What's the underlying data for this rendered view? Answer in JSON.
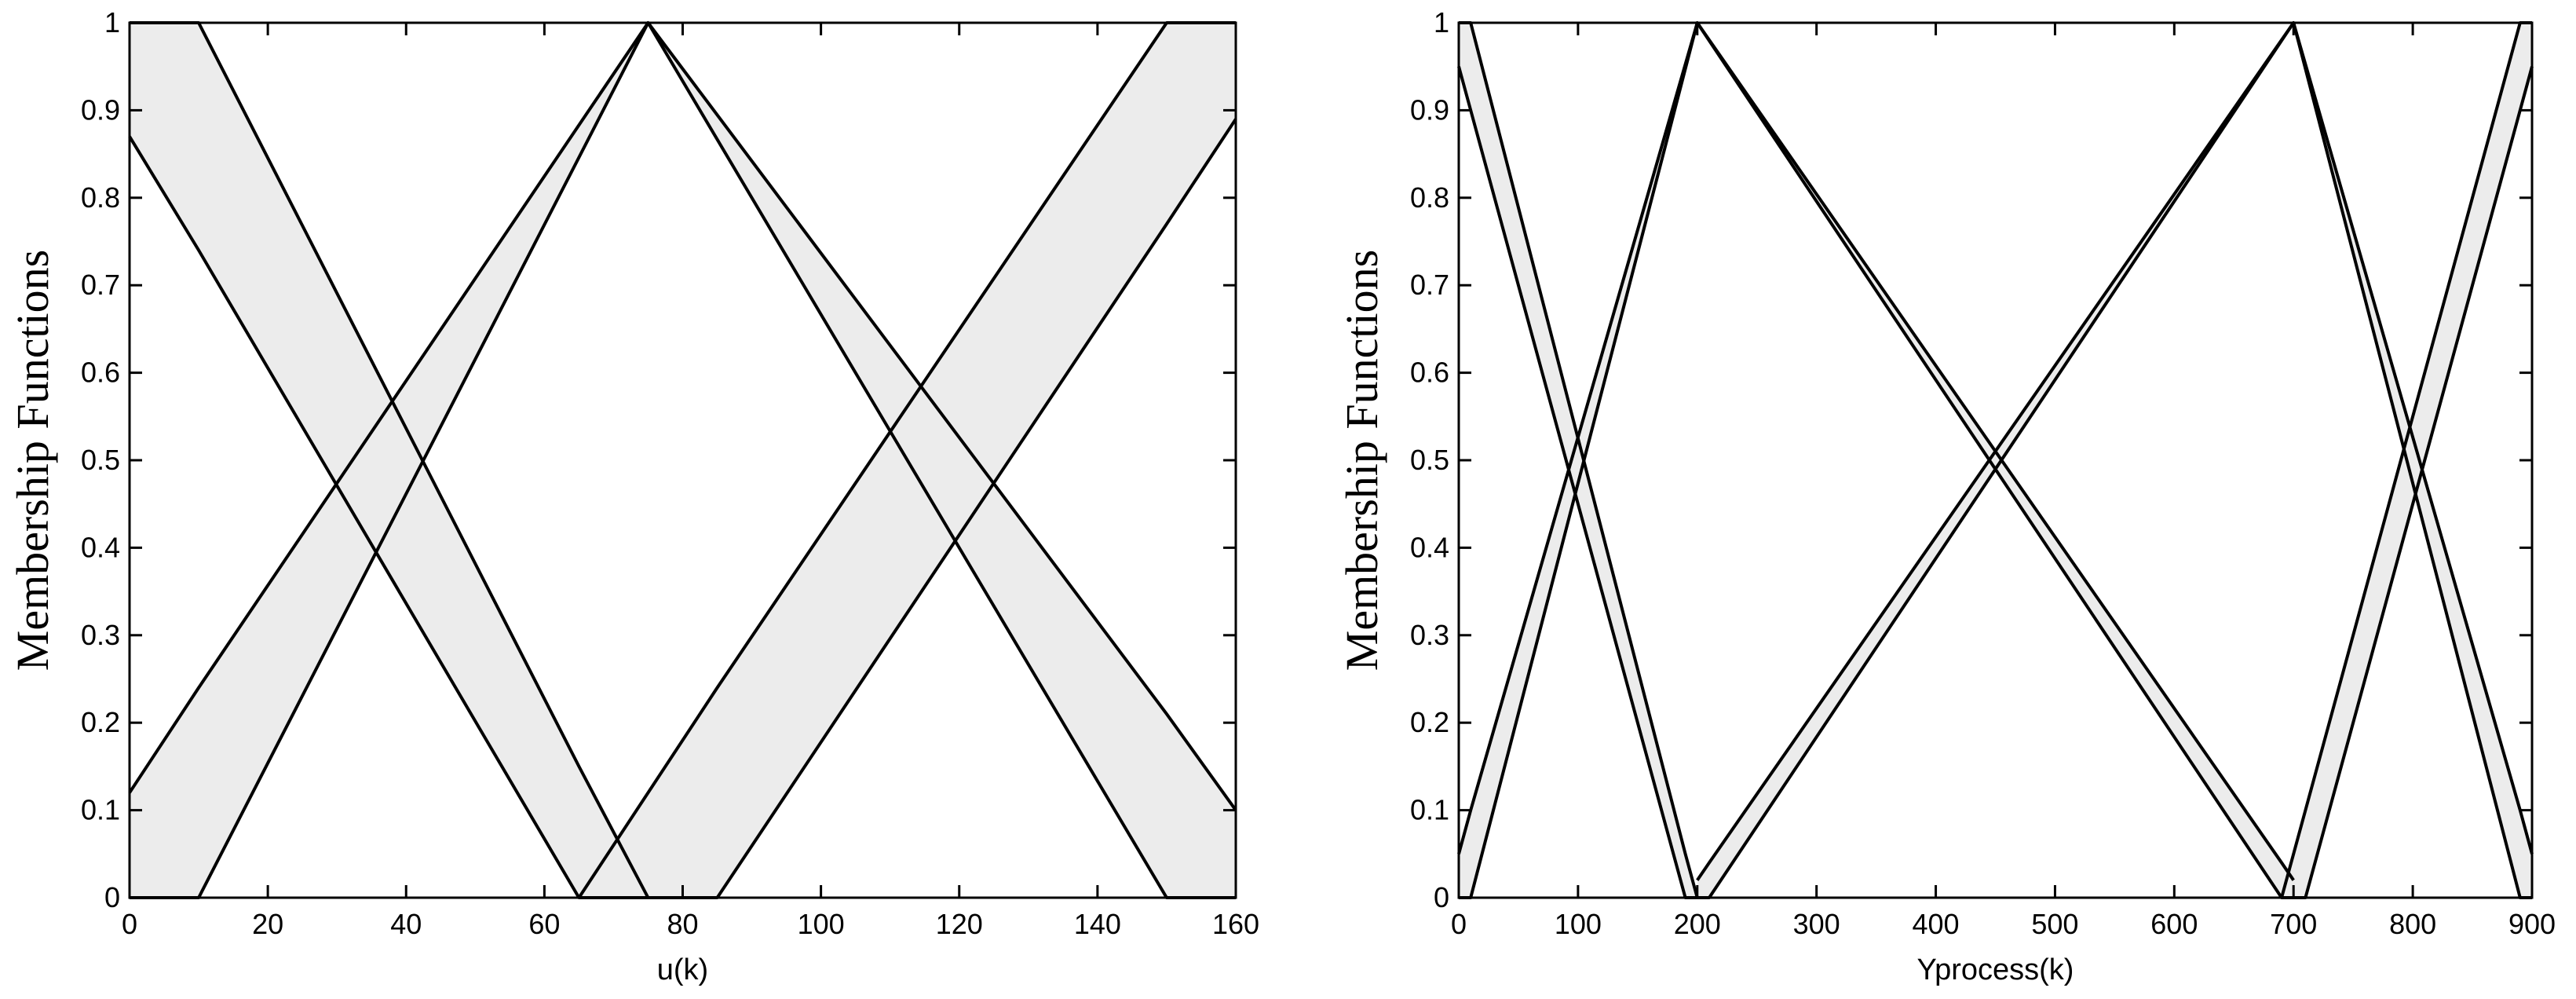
{
  "chart_data": [
    {
      "type": "band",
      "xlabel": "u(k)",
      "ylabel": "Membership Functions",
      "xlim": [
        0,
        160
      ],
      "ylim": [
        0,
        1
      ],
      "xticks": [
        0,
        20,
        40,
        60,
        80,
        100,
        120,
        140,
        160
      ],
      "yticks": [
        0,
        0.1,
        0.2,
        0.3,
        0.4,
        0.5,
        0.6,
        0.7,
        0.8,
        0.9,
        1
      ],
      "fill": "#ececec",
      "line_color": "#000000",
      "series": [
        {
          "x": [
            0,
            10,
            65,
            75
          ],
          "upper": [
            1,
            1,
            0.15,
            0
          ],
          "lower": [
            0.87,
            0.74,
            0,
            0
          ]
        },
        {
          "x": [
            0,
            10,
            75,
            150,
            160
          ],
          "upper": [
            0.12,
            0.24,
            1,
            0.21,
            0.1
          ],
          "lower": [
            0,
            0,
            1,
            0,
            0
          ]
        },
        {
          "x": [
            65,
            85,
            150,
            160
          ],
          "upper": [
            0,
            0.24,
            1,
            1
          ],
          "lower": [
            0,
            0,
            0.77,
            0.89
          ]
        }
      ]
    },
    {
      "type": "band",
      "xlabel": "Yprocess(k)",
      "ylabel": "Membership Functions",
      "xlim": [
        0,
        900
      ],
      "ylim": [
        0,
        1
      ],
      "xticks": [
        0,
        100,
        200,
        300,
        400,
        500,
        600,
        700,
        800,
        900
      ],
      "yticks": [
        0,
        0.1,
        0.2,
        0.3,
        0.4,
        0.5,
        0.6,
        0.7,
        0.8,
        0.9,
        1
      ],
      "fill": "#ececec",
      "line_color": "#000000",
      "series": [
        {
          "x": [
            0,
            10,
            190,
            200
          ],
          "upper": [
            1,
            1,
            0.05,
            0
          ],
          "lower": [
            0.95,
            0.9,
            0,
            0
          ]
        },
        {
          "x": [
            0,
            10,
            200,
            690,
            700
          ],
          "upper": [
            0.05,
            0.1,
            1,
            0.04,
            0.02
          ],
          "lower": [
            0,
            0,
            1,
            0,
            0
          ]
        },
        {
          "x": [
            200,
            210,
            700,
            890,
            900
          ],
          "upper": [
            0.02,
            0.04,
            1,
            0.1,
            0.05
          ],
          "lower": [
            0,
            0,
            1,
            0,
            0
          ]
        },
        {
          "x": [
            690,
            710,
            890,
            900
          ],
          "upper": [
            0,
            0.1,
            1,
            1
          ],
          "lower": [
            0,
            0,
            0.9,
            0.95
          ]
        }
      ]
    }
  ]
}
